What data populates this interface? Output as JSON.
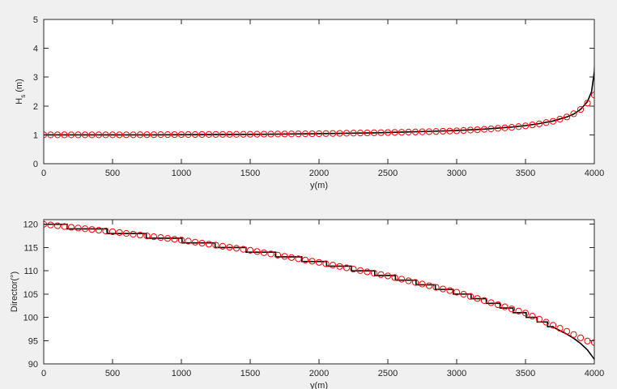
{
  "chart_data": [
    {
      "type": "line",
      "title": "",
      "xlabel": "y(m)",
      "ylabel_main": "H",
      "ylabel_sub": "s",
      "ylabel_suffix": " (m)",
      "xlim": [
        0,
        4000
      ],
      "ylim": [
        0,
        5
      ],
      "xticks": [
        0,
        500,
        1000,
        1500,
        2000,
        2500,
        3000,
        3500,
        4000
      ],
      "yticks": [
        0,
        1,
        2,
        3,
        4,
        5
      ],
      "grid": false,
      "series": [
        {
          "style": "line",
          "color": "#000000",
          "x": [
            0,
            400,
            800,
            1200,
            1600,
            2000,
            2400,
            2800,
            3000,
            3200,
            3400,
            3500,
            3600,
            3700,
            3800,
            3850,
            3900,
            3950,
            3980,
            4000,
            4010
          ],
          "y": [
            1.0,
            1.0,
            1.0,
            1.01,
            1.02,
            1.04,
            1.07,
            1.12,
            1.15,
            1.2,
            1.27,
            1.32,
            1.39,
            1.48,
            1.62,
            1.72,
            1.88,
            2.15,
            2.5,
            3.2,
            4.25
          ]
        },
        {
          "style": "markers",
          "marker": "circle",
          "color": "#ff0000",
          "x_start": 0,
          "x_step": 50,
          "x_end": 4000,
          "y_anchor_x": [
            0,
            500,
            1000,
            1500,
            2000,
            2500,
            2800,
            3000,
            3200,
            3400,
            3500,
            3600,
            3700,
            3800,
            3850,
            3900,
            3950,
            4000
          ],
          "y_anchor_y": [
            1.0,
            1.0,
            1.01,
            1.02,
            1.04,
            1.08,
            1.11,
            1.14,
            1.19,
            1.26,
            1.31,
            1.38,
            1.47,
            1.62,
            1.73,
            1.88,
            2.1,
            2.38
          ]
        }
      ]
    },
    {
      "type": "line",
      "title": "",
      "xlabel": "y(m)",
      "ylabel": "Director(°)",
      "xlim": [
        0,
        4000
      ],
      "ylim": [
        90,
        121
      ],
      "xticks": [
        0,
        500,
        1000,
        1500,
        2000,
        2500,
        3000,
        3500,
        4000
      ],
      "yticks": [
        90,
        95,
        100,
        105,
        110,
        115,
        120
      ],
      "grid": false,
      "series": [
        {
          "style": "staircase-line",
          "color": "#000000",
          "x": [
            0,
            100,
            200,
            300,
            400,
            500,
            600,
            700,
            800,
            900,
            1000,
            1100,
            1200,
            1300,
            1400,
            1500,
            1600,
            1700,
            1800,
            1900,
            2000,
            2100,
            2200,
            2300,
            2400,
            2500,
            2600,
            2700,
            2800,
            2900,
            3000,
            3100,
            3200,
            3300,
            3400,
            3500,
            3600,
            3700,
            3800,
            3850,
            3900,
            3950,
            4000
          ],
          "y": [
            120.0,
            119.7,
            119.4,
            119.05,
            118.7,
            118.35,
            118.0,
            117.65,
            117.3,
            116.9,
            116.5,
            116.1,
            115.7,
            115.25,
            114.8,
            114.35,
            113.9,
            113.4,
            112.9,
            112.35,
            111.8,
            111.25,
            110.7,
            110.1,
            109.5,
            108.85,
            108.2,
            107.5,
            106.8,
            106.05,
            105.3,
            104.5,
            103.6,
            102.65,
            101.6,
            100.5,
            99.3,
            97.9,
            96.4,
            95.5,
            94.4,
            93.0,
            91.0
          ],
          "step_levels": [
            120,
            119,
            118,
            117,
            116,
            115,
            114,
            113,
            112,
            111,
            110,
            109,
            108,
            107,
            106,
            105,
            104,
            103,
            102,
            101,
            100,
            99,
            98,
            97,
            96
          ]
        },
        {
          "style": "markers",
          "marker": "circle",
          "color": "#ff0000",
          "x_start": 0,
          "x_step": 50,
          "x_end": 4000,
          "y_anchor_x": [
            0,
            500,
            1000,
            1500,
            2000,
            2500,
            3000,
            3500,
            3800,
            3900,
            3950,
            4000
          ],
          "y_anchor_y": [
            120.0,
            118.4,
            116.6,
            114.4,
            111.8,
            108.9,
            105.4,
            100.9,
            97.0,
            95.6,
            94.9,
            94.6
          ]
        }
      ]
    }
  ]
}
